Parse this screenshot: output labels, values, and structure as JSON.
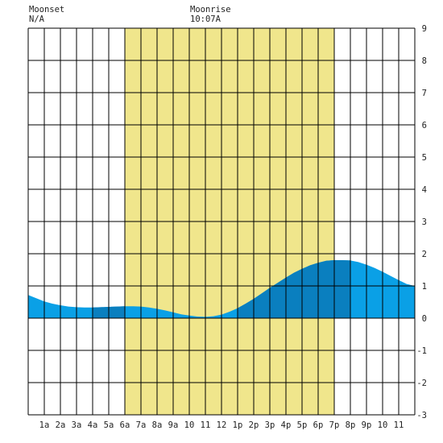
{
  "header": {
    "moonset_label": "Moonset",
    "moonset_value": "N/A",
    "moonrise_label": "Moonrise",
    "moonrise_value": "10:07A"
  },
  "chart_data": {
    "type": "area",
    "title": "",
    "xlabel": "",
    "ylabel": "",
    "xlim": [
      0,
      24
    ],
    "ylim": [
      -3,
      9
    ],
    "x_tick_labels": [
      {
        "x": 1,
        "label": "1a"
      },
      {
        "x": 2,
        "label": "2a"
      },
      {
        "x": 3,
        "label": "3a"
      },
      {
        "x": 4,
        "label": "4a"
      },
      {
        "x": 5,
        "label": "5a"
      },
      {
        "x": 6,
        "label": "6a"
      },
      {
        "x": 7,
        "label": "7a"
      },
      {
        "x": 8,
        "label": "8a"
      },
      {
        "x": 9,
        "label": "9a"
      },
      {
        "x": 10,
        "label": "10"
      },
      {
        "x": 11,
        "label": "11"
      },
      {
        "x": 12,
        "label": "12"
      },
      {
        "x": 13,
        "label": "1p"
      },
      {
        "x": 14,
        "label": "2p"
      },
      {
        "x": 15,
        "label": "3p"
      },
      {
        "x": 16,
        "label": "4p"
      },
      {
        "x": 17,
        "label": "5p"
      },
      {
        "x": 18,
        "label": "6p"
      },
      {
        "x": 19,
        "label": "7p"
      },
      {
        "x": 20,
        "label": "8p"
      },
      {
        "x": 21,
        "label": "9p"
      },
      {
        "x": 22,
        "label": "10"
      },
      {
        "x": 23,
        "label": "11"
      }
    ],
    "y_ticks": [
      -3,
      -2,
      -1,
      0,
      1,
      2,
      3,
      4,
      5,
      6,
      7,
      8,
      9
    ],
    "grid": true,
    "daylight_band": {
      "start": 6,
      "end": 19,
      "color": "#f0e68c"
    },
    "series": [
      {
        "x": [
          0,
          0.5,
          1,
          1.5,
          2,
          2.5,
          3,
          3.5,
          4,
          4.5,
          5,
          5.5,
          6,
          6.5,
          7,
          7.5,
          8,
          8.5,
          9,
          9.5,
          10,
          10.5,
          11,
          11.5,
          12,
          12.5,
          13,
          13.5,
          14,
          14.5,
          15,
          15.5,
          16,
          16.5,
          17,
          17.5,
          18,
          18.5,
          19,
          19.5,
          20,
          20.5,
          21,
          21.5,
          22,
          22.5,
          23,
          23.5,
          24
        ],
        "values": [
          0.72,
          0.62,
          0.52,
          0.45,
          0.4,
          0.36,
          0.34,
          0.33,
          0.33,
          0.34,
          0.35,
          0.36,
          0.37,
          0.37,
          0.36,
          0.33,
          0.29,
          0.24,
          0.18,
          0.12,
          0.08,
          0.05,
          0.04,
          0.06,
          0.11,
          0.2,
          0.31,
          0.45,
          0.6,
          0.77,
          0.94,
          1.1,
          1.26,
          1.41,
          1.53,
          1.64,
          1.72,
          1.78,
          1.8,
          1.8,
          1.79,
          1.74,
          1.66,
          1.56,
          1.44,
          1.31,
          1.18,
          1.06,
          1.0
        ]
      }
    ],
    "dark_segments": [
      [
        4,
        6
      ],
      [
        13,
        20
      ]
    ],
    "colors": {
      "tide_light": "#0aa0e6",
      "tide_dark": "#0a7fbf",
      "grid": "#000000",
      "background": "#ffffff"
    }
  }
}
